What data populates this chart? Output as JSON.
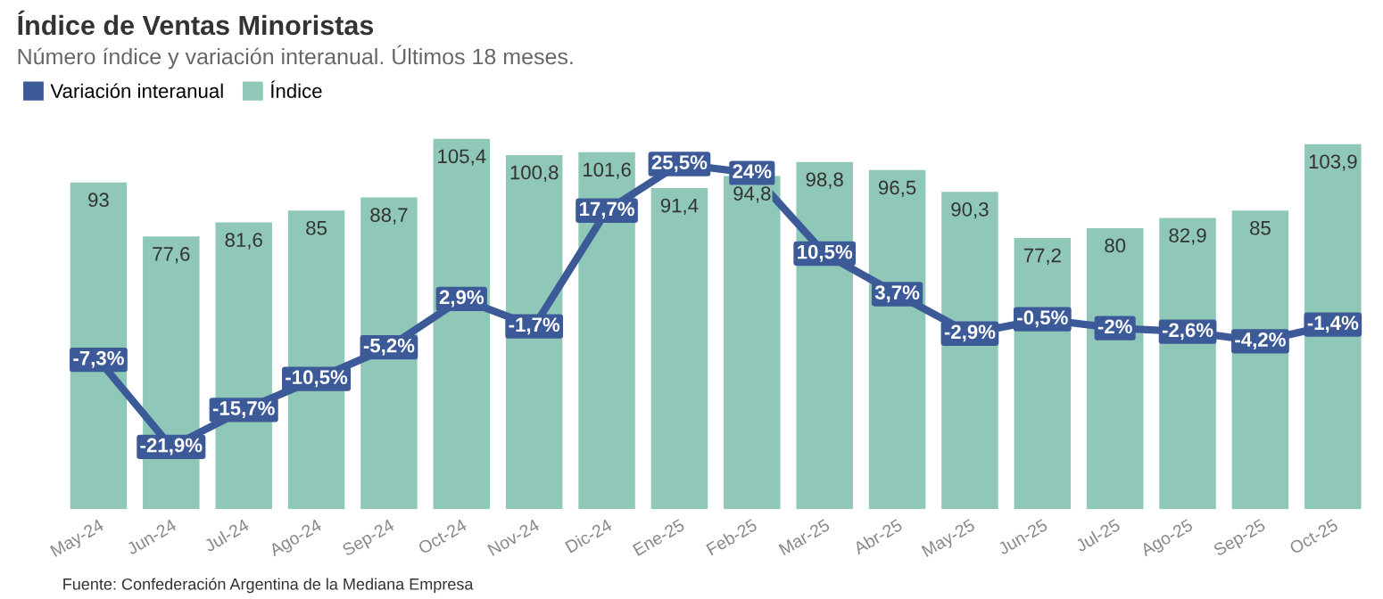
{
  "chart_data": {
    "type": "bar",
    "title": "Índice de Ventas Minoristas",
    "subtitle": "Número índice y variación interanual. Últimos 18 meses.",
    "categories": [
      "May-24",
      "Jun-24",
      "Jul-24",
      "Ago-24",
      "Sep-24",
      "Oct-24",
      "Nov-24",
      "Dic-24",
      "Ene-25",
      "Feb-25",
      "Mar-25",
      "Abr-25",
      "May-25",
      "Jun-25",
      "Jul-25",
      "Ago-25",
      "Sep-25",
      "Oct-25"
    ],
    "series": [
      {
        "name": "Variación interanual",
        "type": "line",
        "axis": "y2",
        "color": "#3d5a98",
        "values": [
          -7.3,
          -21.9,
          -15.7,
          -10.5,
          -5.2,
          2.9,
          -1.7,
          17.7,
          25.5,
          24,
          10.5,
          3.7,
          -2.9,
          -0.5,
          -2,
          -2.6,
          -4.2,
          -1.4
        ],
        "value_labels": [
          "-7,3%",
          "-21,9%",
          "-15,7%",
          "-10,5%",
          "-5,2%",
          "2,9%",
          "-1,7%",
          "17,7%",
          "25,5%",
          "24%",
          "10,5%",
          "3,7%",
          "-2,9%",
          "-0,5%",
          "-2%",
          "-2,6%",
          "-4,2%",
          "-1,4%"
        ]
      },
      {
        "name": "Índice",
        "color": "#8fc7b8",
        "values": [
          93,
          77.6,
          81.6,
          85,
          88.7,
          105.4,
          100.8,
          101.6,
          91.4,
          94.8,
          98.8,
          96.5,
          90.3,
          77.2,
          80,
          82.9,
          85,
          103.9
        ],
        "value_labels": [
          "93",
          "77,6",
          "81,6",
          "85",
          "88,7",
          "105,4",
          "100,8",
          "101,6",
          "91,4",
          "94,8",
          "98,8",
          "96,5",
          "90,3",
          "77,2",
          "80",
          "82,9",
          "85",
          "103,9"
        ]
      }
    ],
    "legend": "top left",
    "tick_labels": "x",
    "grid": false,
    "marker": "square",
    "line_style": "solid",
    "annotations": [
      "Fuente: Confederación Argentina de la Mediana Empresa"
    ]
  }
}
